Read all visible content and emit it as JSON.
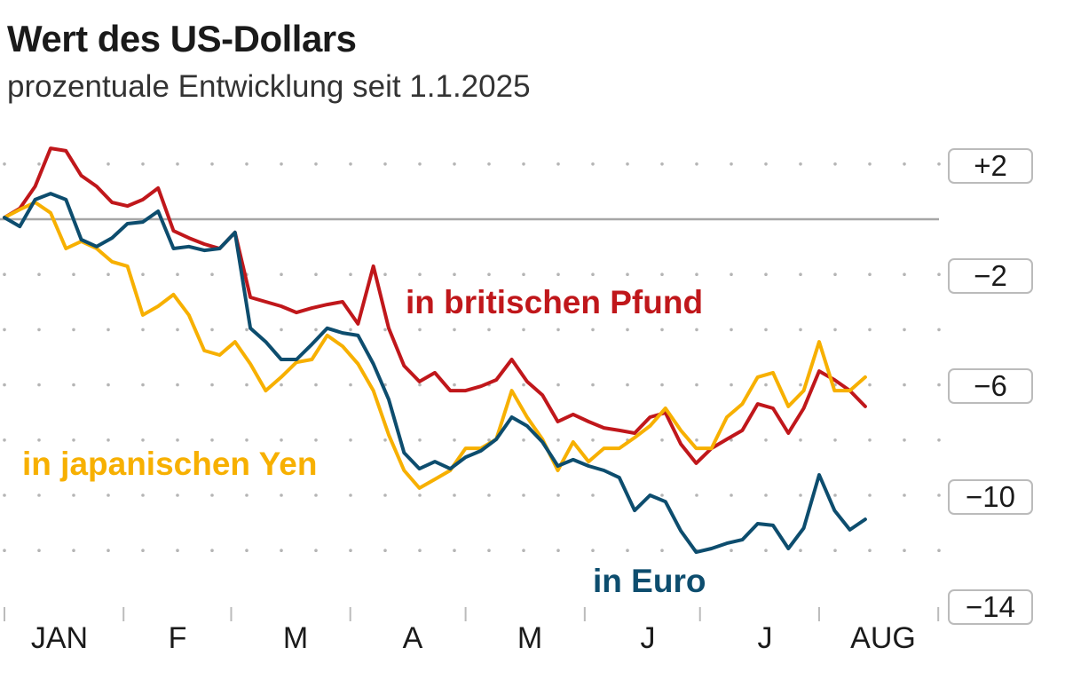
{
  "title": "Wert des US-Dollars",
  "subtitle": "prozentuale Entwicklung seit 1.1.2025",
  "chart_data": {
    "type": "line",
    "title": "Wert des US-Dollars",
    "subtitle": "prozentuale Entwicklung seit 1.1.2025",
    "xlabel": "",
    "ylabel": "",
    "ylim": [
      -14,
      2
    ],
    "y_ticks": [
      "+2",
      "−2",
      "−6",
      "−10",
      "−14"
    ],
    "y_tick_values": [
      2,
      -2,
      -6,
      -10,
      -14
    ],
    "x_ticks": [
      "JAN",
      "F",
      "M",
      "A",
      "M",
      "J",
      "J",
      "AUG"
    ],
    "grid": "dotted",
    "baseline": 0,
    "x": [
      "2025-01-01",
      "2025-01-05",
      "2025-01-09",
      "2025-01-13",
      "2025-01-17",
      "2025-01-21",
      "2025-01-25",
      "2025-01-29",
      "2025-02-02",
      "2025-02-06",
      "2025-02-10",
      "2025-02-14",
      "2025-02-18",
      "2025-02-22",
      "2025-02-26",
      "2025-03-02",
      "2025-03-06",
      "2025-03-10",
      "2025-03-14",
      "2025-03-18",
      "2025-03-22",
      "2025-03-26",
      "2025-03-30",
      "2025-04-03",
      "2025-04-07",
      "2025-04-11",
      "2025-04-15",
      "2025-04-19",
      "2025-04-23",
      "2025-04-27",
      "2025-05-01",
      "2025-05-05",
      "2025-05-09",
      "2025-05-13",
      "2025-05-17",
      "2025-05-21",
      "2025-05-25",
      "2025-05-29",
      "2025-06-02",
      "2025-06-06",
      "2025-06-10",
      "2025-06-14",
      "2025-06-18",
      "2025-06-22",
      "2025-06-26",
      "2025-06-30",
      "2025-07-04",
      "2025-07-08",
      "2025-07-12",
      "2025-07-16",
      "2025-07-20",
      "2025-07-24",
      "2025-07-28",
      "2025-08-01",
      "2025-08-05",
      "2025-08-09",
      "2025-08-13"
    ],
    "series": [
      {
        "name": "in britischen Pfund",
        "color": "#c0171b",
        "values": [
          0.06,
          0.39,
          1.19,
          2.57,
          2.48,
          1.58,
          1.19,
          0.61,
          0.48,
          0.71,
          1.13,
          -0.42,
          -0.68,
          -0.9,
          -1.06,
          -0.48,
          -2.83,
          -2.99,
          -3.15,
          -3.38,
          -3.22,
          -3.09,
          -2.99,
          -3.79,
          -1.7,
          -3.95,
          -5.31,
          -5.88,
          -5.56,
          -6.21,
          -6.21,
          -6.05,
          -5.82,
          -5.08,
          -5.88,
          -6.37,
          -7.33,
          -7.07,
          -7.33,
          -7.56,
          -7.65,
          -7.75,
          -7.17,
          -7.01,
          -8.14,
          -8.84,
          -8.3,
          -7.97,
          -7.65,
          -6.69,
          -6.85,
          -7.75,
          -6.85,
          -5.5,
          -5.82,
          -6.21,
          -6.78
        ]
      },
      {
        "name": "in japanischen Yen",
        "color": "#f7b000",
        "values": [
          0.06,
          0.35,
          0.61,
          0.23,
          -1.06,
          -0.8,
          -1.06,
          -1.54,
          -1.7,
          -3.47,
          -3.15,
          -2.73,
          -3.47,
          -4.76,
          -4.92,
          -4.44,
          -5.24,
          -6.21,
          -5.72,
          -5.18,
          -5.08,
          -4.21,
          -4.6,
          -5.24,
          -6.21,
          -7.81,
          -9.1,
          -9.74,
          -9.42,
          -9.1,
          -8.3,
          -8.3,
          -7.97,
          -6.21,
          -7.17,
          -7.97,
          -9.1,
          -8.07,
          -8.78,
          -8.3,
          -8.3,
          -7.91,
          -7.49,
          -6.85,
          -7.65,
          -8.3,
          -8.3,
          -7.17,
          -6.69,
          -5.72,
          -5.56,
          -6.78,
          -6.21,
          -4.44,
          -6.21,
          -6.21,
          -5.72
        ]
      },
      {
        "name": "in Euro",
        "color": "#0d4d6e",
        "values": [
          0.06,
          -0.26,
          0.71,
          0.93,
          0.71,
          -0.74,
          -0.99,
          -0.68,
          -0.16,
          -0.1,
          0.29,
          -1.06,
          -0.99,
          -1.13,
          -1.06,
          -0.48,
          -3.95,
          -4.44,
          -5.08,
          -5.08,
          -4.53,
          -3.95,
          -4.12,
          -4.21,
          -5.24,
          -6.53,
          -8.46,
          -9.04,
          -8.78,
          -9.04,
          -8.62,
          -8.39,
          -7.97,
          -7.17,
          -7.49,
          -8.07,
          -8.94,
          -8.71,
          -8.94,
          -9.1,
          -9.36,
          -10.55,
          -10.0,
          -10.23,
          -11.29,
          -12.06,
          -11.93,
          -11.74,
          -11.61,
          -11.03,
          -11.09,
          -11.93,
          -11.19,
          -9.26,
          -10.55,
          -11.25,
          -10.87
        ]
      }
    ]
  }
}
